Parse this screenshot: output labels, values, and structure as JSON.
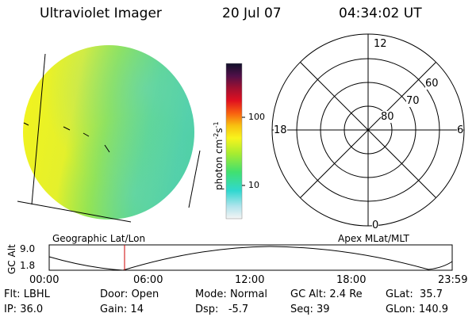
{
  "header": {
    "title": "Ultraviolet Imager",
    "date": "20 Jul 07",
    "time": "04:34:02 UT"
  },
  "colorbar": {
    "unit_label": "photon cm",
    "unit_sup1": "-2",
    "unit_mid": "s",
    "unit_sup2": "-1",
    "ticks": [
      "100",
      "10"
    ]
  },
  "polar_plot": {
    "lat_labels": [
      "80",
      "70",
      "60"
    ],
    "mlt_labels": {
      "top": "12",
      "left": "18",
      "right": "6",
      "bottom": "0"
    }
  },
  "timeline": {
    "left_title": "Geographic Lat/Lon",
    "right_title": "Apex MLat/MLT",
    "ylabel": "GC Alt",
    "y_ticks": [
      "9.0",
      "1.8"
    ],
    "x_ticks": [
      "00:00",
      "06:00",
      "12:00",
      "18:00",
      "23:59"
    ]
  },
  "status": {
    "row1": [
      {
        "key": "Flt:",
        "value": "LBHL"
      },
      {
        "key": "Door:",
        "value": "Open"
      },
      {
        "key": "Mode:",
        "value": "Normal"
      },
      {
        "key": "GC Alt:",
        "value": "2.4 Re"
      },
      {
        "key": "GLat:",
        "value": "35.7"
      }
    ],
    "row2": [
      {
        "key": "IP:",
        "value": "36.0"
      },
      {
        "key": "Gain:",
        "value": "14"
      },
      {
        "key": "Dsp:",
        "value": "-5.7"
      },
      {
        "key": "Seq:",
        "value": "39"
      },
      {
        "key": "GLon:",
        "value": "140.9"
      }
    ]
  },
  "colors": {
    "disk_left": "#f0f020",
    "disk_mid": "#9ce83a",
    "disk_right": "#58d88a",
    "marker": "#cc0000"
  }
}
